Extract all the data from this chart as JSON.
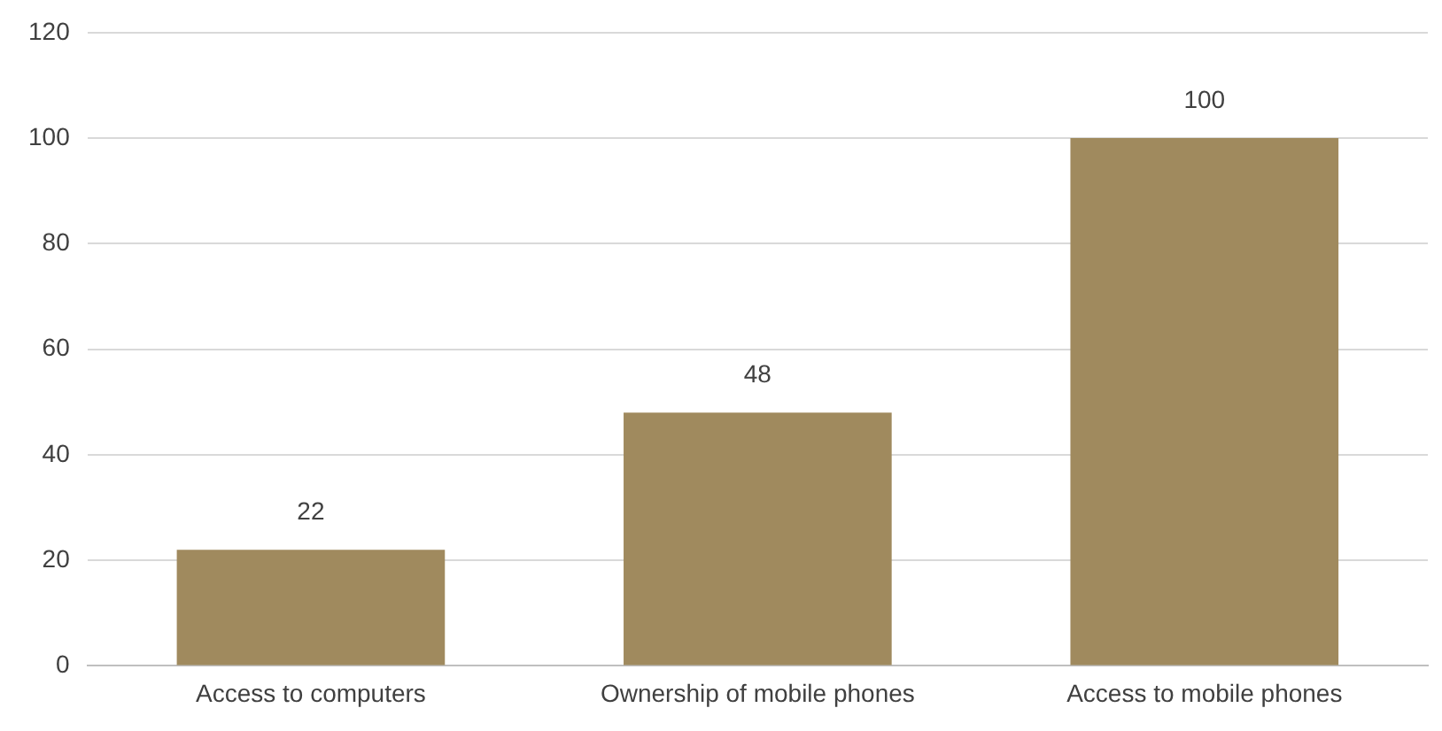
{
  "chart_data": {
    "type": "bar",
    "categories": [
      "Access to computers",
      "Ownership of mobile phones",
      "Access to mobile phones"
    ],
    "values": [
      22,
      48,
      100
    ],
    "color": "#a08a5e",
    "ylim": [
      0,
      120
    ],
    "yticks": [
      0,
      20,
      40,
      60,
      80,
      100,
      120
    ],
    "grid": "y",
    "data_labels": true
  }
}
